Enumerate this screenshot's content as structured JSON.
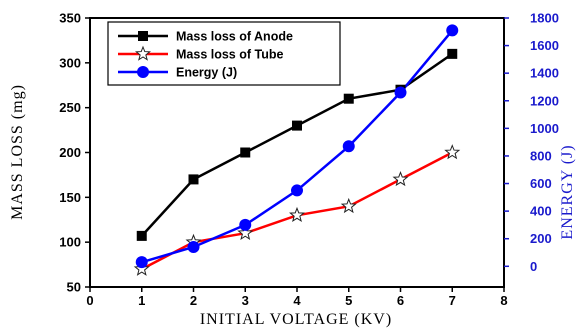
{
  "chart_data": {
    "type": "line",
    "xlabel": "INITIAL VOLTAGE (KV)",
    "ylabel_left": "MASS LOSS (mg)",
    "ylabel_right": "ENERGY (J)",
    "xlim": [
      0,
      8
    ],
    "ylim_left": [
      50,
      350
    ],
    "ylim_right": [
      -150,
      1800
    ],
    "x_ticks": [
      0,
      1,
      2,
      3,
      4,
      5,
      6,
      7,
      8
    ],
    "y_ticks_left": [
      50,
      100,
      150,
      200,
      250,
      300,
      350
    ],
    "y_ticks_right": [
      0,
      200,
      400,
      600,
      800,
      1000,
      1200,
      1400,
      1600,
      1800
    ],
    "grid": false,
    "legend_position": "top-left",
    "series": [
      {
        "name": "Mass loss of Anode",
        "axis": "left",
        "color": "#000000",
        "marker": "square",
        "x": [
          1,
          2,
          3,
          4,
          5,
          6,
          7
        ],
        "y": [
          107,
          170,
          200,
          230,
          260,
          270,
          310
        ]
      },
      {
        "name": "Mass loss of Tube",
        "axis": "left",
        "color": "#ff0000",
        "marker": "star",
        "x": [
          1,
          2,
          3,
          4,
          5,
          6,
          7
        ],
        "y": [
          70,
          100,
          110,
          130,
          140,
          170,
          200
        ]
      },
      {
        "name": "Energy (J)",
        "axis": "right",
        "color": "#0000ff",
        "marker": "circle",
        "x": [
          1,
          2,
          3,
          4,
          5,
          6,
          7
        ],
        "y": [
          30,
          140,
          300,
          550,
          870,
          1260,
          1710
        ]
      }
    ]
  }
}
